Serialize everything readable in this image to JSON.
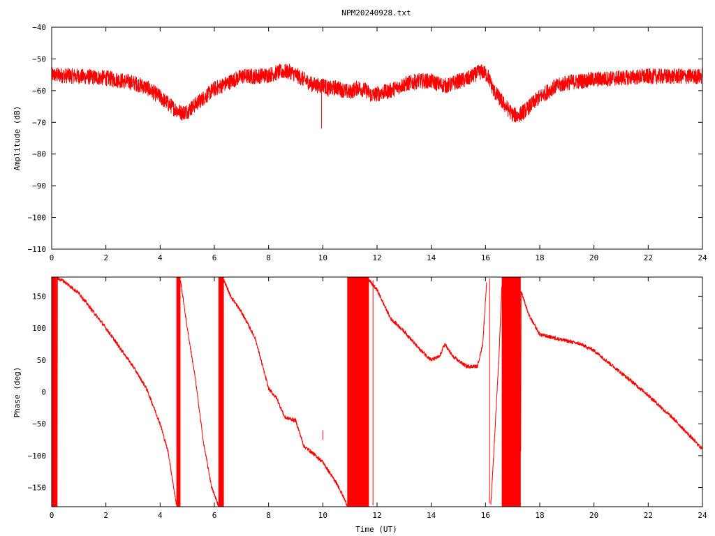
{
  "figure": {
    "title": "NPM20240928.txt"
  },
  "chart_data": [
    {
      "type": "line",
      "panel": "amplitude",
      "title": "NPM20240928.txt",
      "xlabel": "",
      "ylabel": "Amplitude (dB)",
      "xlim": [
        0,
        24
      ],
      "ylim": [
        -110,
        -40
      ],
      "xticks": [
        "0",
        "2",
        "4",
        "6",
        "8",
        "10",
        "12",
        "14",
        "16",
        "18",
        "20",
        "22",
        "24"
      ],
      "yticks": [
        "−40",
        "−50",
        "−60",
        "−70",
        "−80",
        "−90",
        "−100",
        "−110"
      ],
      "ytick_values": [
        -40,
        -50,
        -60,
        -70,
        -80,
        -90,
        -100,
        -110
      ],
      "color": "#ff0000",
      "noise_band": 2.5,
      "series": [
        {
          "x": [
            0,
            1,
            2,
            3,
            3.5,
            4,
            4.5,
            4.8,
            5,
            5.5,
            6,
            6.5,
            7,
            7.5,
            8,
            8.5,
            8.8,
            9,
            9.3,
            9.6,
            9.9,
            10,
            10.2,
            10.5,
            10.8,
            11,
            11.3,
            11.6,
            11.8,
            12,
            12.5,
            13,
            13.5,
            14,
            14.3,
            14.6,
            15,
            15.3,
            15.7,
            15.9,
            16.1,
            16.3,
            16.7,
            17,
            17.2,
            17.5,
            18,
            18.5,
            19,
            20,
            21,
            22,
            23,
            24
          ],
          "y": [
            -55,
            -55.5,
            -56,
            -57.5,
            -59,
            -62,
            -65.5,
            -67,
            -66.5,
            -63,
            -59.5,
            -57.5,
            -55.5,
            -55.5,
            -55,
            -54,
            -54,
            -55,
            -56.5,
            -58,
            -58.5,
            -58,
            -59.5,
            -59,
            -60,
            -60.5,
            -59,
            -60,
            -61.5,
            -61,
            -60,
            -58,
            -57,
            -57,
            -58,
            -58.5,
            -57,
            -56.5,
            -54.5,
            -54,
            -55.5,
            -60,
            -64.5,
            -67.5,
            -68,
            -66,
            -62,
            -59,
            -57.5,
            -56.5,
            -56,
            -55.5,
            -55.5,
            -55.5
          ]
        }
      ],
      "spikes": [
        {
          "x": 9.95,
          "y_from": -58,
          "y_to": -72
        }
      ]
    },
    {
      "type": "line",
      "panel": "phase",
      "title": "",
      "xlabel": "Time (UT)",
      "ylabel": "Phase (deg)",
      "xlim": [
        0,
        24
      ],
      "ylim": [
        -180,
        180
      ],
      "xticks": [
        "0",
        "2",
        "4",
        "6",
        "8",
        "10",
        "12",
        "14",
        "16",
        "18",
        "20",
        "22",
        "24"
      ],
      "yticks": [
        "150",
        "100",
        "50",
        "0",
        "−50",
        "−100",
        "−150"
      ],
      "ytick_values": [
        150,
        100,
        50,
        0,
        -50,
        -100,
        -150
      ],
      "color": "#ff0000",
      "noise_band": 3,
      "series": [
        {
          "x": [
            0.2,
            0.4,
            1,
            2,
            3,
            3.5,
            4,
            4.3,
            4.6
          ],
          "y": [
            178,
            175,
            155,
            100,
            40,
            5,
            -50,
            -95,
            -178
          ]
        },
        {
          "x": [
            4.75,
            5,
            5.3,
            5.6,
            5.9,
            6.15
          ],
          "y": [
            175,
            100,
            20,
            -80,
            -150,
            -178
          ]
        },
        {
          "x": [
            6.35,
            6.6,
            7,
            7.5,
            8,
            8.3,
            8.6,
            9,
            9.3,
            9.6,
            10,
            10.3,
            10.6,
            10.9
          ],
          "y": [
            175,
            150,
            125,
            85,
            5,
            -10,
            -40,
            -45,
            -85,
            -95,
            -110,
            -130,
            -150,
            -178
          ]
        },
        {
          "x": [
            11.7,
            12,
            12.5,
            13,
            13.5,
            14,
            14.3,
            14.5,
            14.8,
            15.3,
            15.7,
            15.9,
            16.05
          ],
          "y": [
            175,
            160,
            115,
            95,
            70,
            50,
            55,
            75,
            55,
            40,
            40,
            75,
            178
          ]
        },
        {
          "x": [
            16.2,
            16.3,
            16.5,
            16.6
          ],
          "y": [
            -175,
            -100,
            60,
            165
          ]
        },
        {
          "x": [
            17.3,
            17.6,
            18,
            18.5,
            19,
            19.5,
            20,
            21,
            22,
            23,
            24
          ],
          "y": [
            160,
            120,
            90,
            85,
            80,
            75,
            65,
            30,
            -5,
            -45,
            -90
          ]
        }
      ],
      "bands": [
        [
          0,
          0.2
        ],
        [
          4.6,
          4.75
        ],
        [
          6.15,
          6.35
        ],
        [
          10.9,
          11.7
        ],
        [
          16.6,
          17.3
        ]
      ],
      "spikes": [
        {
          "x": 11.85,
          "y_from": 175,
          "y_to": -178
        },
        {
          "x": 10,
          "y_from": -60,
          "y_to": -75
        },
        {
          "x": 16.15,
          "y_from": 178,
          "y_to": -175
        }
      ]
    }
  ]
}
